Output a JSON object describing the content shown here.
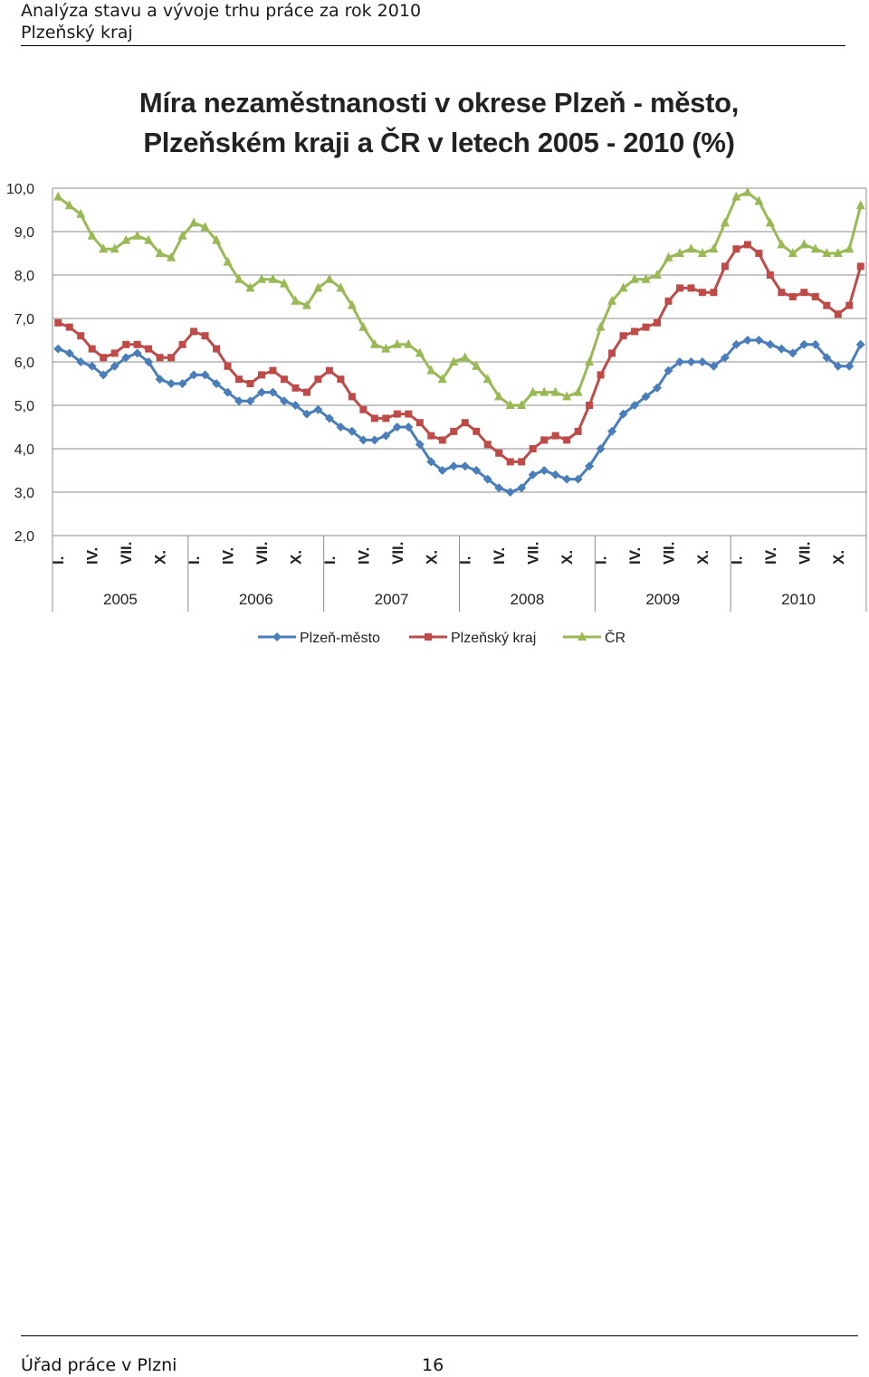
{
  "header": {
    "line1": "Analýza stavu a vývoje trhu práce za rok 2010",
    "line2": "Plzeňský kraj"
  },
  "footer": {
    "office": "Úřad práce v Plzni",
    "page_number": "16"
  },
  "chart_data": {
    "type": "line",
    "title_line1": "Míra nezaměstnanosti v okrese Plzeň - město,",
    "title_line2": "Plzeňském kraji a ČR v letech 2005 - 2010 (%)",
    "xlabel": "",
    "ylabel": "",
    "ylim": [
      2.0,
      10.0
    ],
    "ytick_labels": [
      "2,0",
      "3,0",
      "4,0",
      "5,0",
      "6,0",
      "7,0",
      "8,0",
      "9,0",
      "10,0"
    ],
    "months_per_year": 12,
    "years": [
      "2005",
      "2006",
      "2007",
      "2008",
      "2009",
      "2010"
    ],
    "month_tick_labels": [
      "I.",
      "IV.",
      "VII.",
      "X."
    ],
    "grid": true,
    "legend_position": "bottom",
    "series": [
      {
        "name": "Plzeň-město",
        "color": "#4a7ebb",
        "marker": "diamond",
        "values": [
          6.3,
          6.2,
          6.0,
          5.9,
          5.7,
          5.9,
          6.1,
          6.2,
          6.0,
          5.6,
          5.5,
          5.5,
          5.7,
          5.7,
          5.5,
          5.3,
          5.1,
          5.1,
          5.3,
          5.3,
          5.1,
          5.0,
          4.8,
          4.9,
          4.7,
          4.5,
          4.4,
          4.2,
          4.2,
          4.3,
          4.5,
          4.5,
          4.1,
          3.7,
          3.5,
          3.6,
          3.6,
          3.5,
          3.3,
          3.1,
          3.0,
          3.1,
          3.4,
          3.5,
          3.4,
          3.3,
          3.3,
          3.6,
          4.0,
          4.4,
          4.8,
          5.0,
          5.2,
          5.4,
          5.8,
          6.0,
          6.0,
          6.0,
          5.9,
          6.1,
          6.4,
          6.5,
          6.5,
          6.4,
          6.3,
          6.2,
          6.4,
          6.4,
          6.1,
          5.9,
          5.9,
          6.4
        ]
      },
      {
        "name": "Plzeňský kraj",
        "color": "#be4b48",
        "marker": "square",
        "values": [
          6.9,
          6.8,
          6.6,
          6.3,
          6.1,
          6.2,
          6.4,
          6.4,
          6.3,
          6.1,
          6.1,
          6.4,
          6.7,
          6.6,
          6.3,
          5.9,
          5.6,
          5.5,
          5.7,
          5.8,
          5.6,
          5.4,
          5.3,
          5.6,
          5.8,
          5.6,
          5.2,
          4.9,
          4.7,
          4.7,
          4.8,
          4.8,
          4.6,
          4.3,
          4.2,
          4.4,
          4.6,
          4.4,
          4.1,
          3.9,
          3.7,
          3.7,
          4.0,
          4.2,
          4.3,
          4.2,
          4.4,
          5.0,
          5.7,
          6.2,
          6.6,
          6.7,
          6.8,
          6.9,
          7.4,
          7.7,
          7.7,
          7.6,
          7.6,
          8.2,
          8.6,
          8.7,
          8.5,
          8.0,
          7.6,
          7.5,
          7.6,
          7.5,
          7.3,
          7.1,
          7.3,
          8.2
        ]
      },
      {
        "name": "ČR",
        "color": "#98b954",
        "marker": "triangle",
        "values": [
          9.8,
          9.6,
          9.4,
          8.9,
          8.6,
          8.6,
          8.8,
          8.9,
          8.8,
          8.5,
          8.4,
          8.9,
          9.2,
          9.1,
          8.8,
          8.3,
          7.9,
          7.7,
          7.9,
          7.9,
          7.8,
          7.4,
          7.3,
          7.7,
          7.9,
          7.7,
          7.3,
          6.8,
          6.4,
          6.3,
          6.4,
          6.4,
          6.2,
          5.8,
          5.6,
          6.0,
          6.1,
          5.9,
          5.6,
          5.2,
          5.0,
          5.0,
          5.3,
          5.3,
          5.3,
          5.2,
          5.3,
          6.0,
          6.8,
          7.4,
          7.7,
          7.9,
          7.9,
          8.0,
          8.4,
          8.5,
          8.6,
          8.5,
          8.6,
          9.2,
          9.8,
          9.9,
          9.7,
          9.2,
          8.7,
          8.5,
          8.7,
          8.6,
          8.5,
          8.5,
          8.6,
          9.6
        ]
      }
    ]
  }
}
